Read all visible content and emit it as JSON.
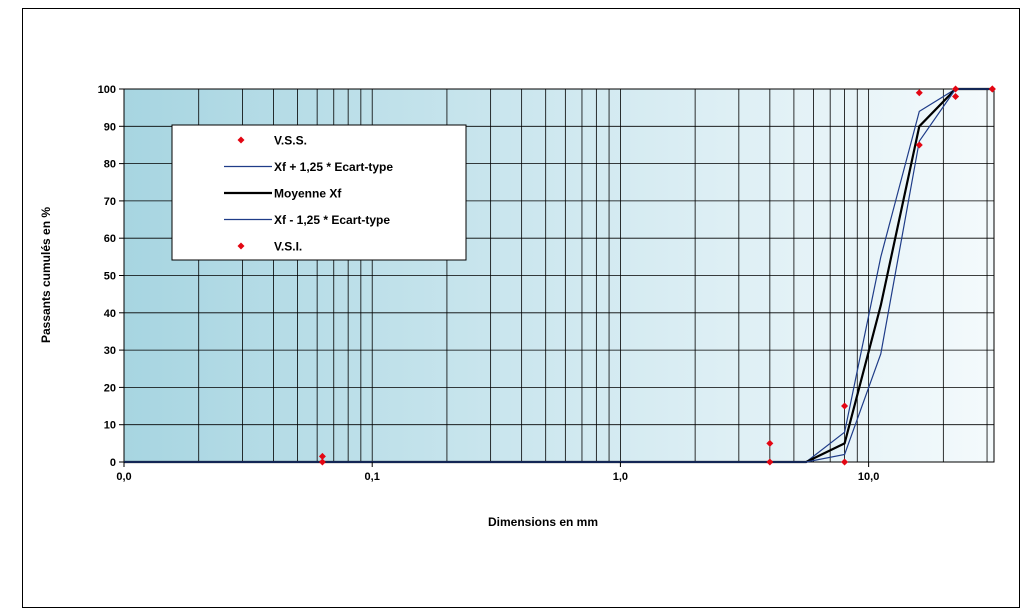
{
  "chart_data": {
    "type": "line",
    "x_scale": "log",
    "xlim": [
      0.01,
      32
    ],
    "ylim": [
      0,
      100
    ],
    "xlabel": "Dimensions en mm",
    "ylabel": "Passants cumulés en %",
    "x_tick_labels": [
      "0,0",
      "0,1",
      "1,0",
      "10,0"
    ],
    "x_tick_values": [
      0.01,
      0.1,
      1,
      10
    ],
    "y_tick_labels": [
      "0",
      "10",
      "20",
      "30",
      "40",
      "50",
      "60",
      "70",
      "80",
      "90",
      "100"
    ],
    "y_tick_values": [
      0,
      10,
      20,
      30,
      40,
      50,
      60,
      70,
      80,
      90,
      100
    ],
    "vertical_grid_x": [
      0.02,
      0.03,
      0.04,
      0.05,
      0.06,
      0.07,
      0.08,
      0.09,
      0.1,
      0.2,
      0.3,
      0.4,
      0.5,
      0.6,
      0.7,
      0.8,
      0.9,
      1,
      2,
      3,
      4,
      5,
      6,
      7,
      8,
      9,
      10,
      20,
      30
    ],
    "horizontal_grid": true,
    "legend_position": "upper-left",
    "series": [
      {
        "name": "V.S.S.",
        "kind": "points",
        "color": "#e30613",
        "points": [
          [
            0.063,
            1.5
          ],
          [
            4,
            5
          ],
          [
            8,
            15
          ],
          [
            16,
            99
          ],
          [
            22.4,
            100
          ],
          [
            31.5,
            100
          ]
        ]
      },
      {
        "name": "Xf + 1,25 * Ecart-type",
        "kind": "line",
        "color": "#1f3c88",
        "points": [
          [
            0.01,
            0
          ],
          [
            5.6,
            0
          ],
          [
            8,
            8
          ],
          [
            11.2,
            55
          ],
          [
            16,
            94
          ],
          [
            22.4,
            100
          ],
          [
            31.5,
            100
          ]
        ]
      },
      {
        "name": "Moyenne Xf",
        "kind": "line",
        "color": "#000000",
        "points": [
          [
            0.01,
            0
          ],
          [
            5.6,
            0
          ],
          [
            8,
            5
          ],
          [
            11.2,
            42
          ],
          [
            16,
            90
          ],
          [
            22.4,
            100
          ],
          [
            31.5,
            100
          ]
        ]
      },
      {
        "name": "Xf - 1,25 * Ecart-type",
        "kind": "line",
        "color": "#1f3c88",
        "points": [
          [
            0.01,
            0
          ],
          [
            5.6,
            0
          ],
          [
            8,
            2
          ],
          [
            11.2,
            29
          ],
          [
            16,
            86
          ],
          [
            22.4,
            100
          ],
          [
            31.5,
            100
          ]
        ]
      },
      {
        "name": "V.S.I.",
        "kind": "points",
        "color": "#e30613",
        "points": [
          [
            0.063,
            0
          ],
          [
            4,
            0
          ],
          [
            8,
            0
          ],
          [
            16,
            85
          ],
          [
            22.4,
            98
          ],
          [
            31.5,
            100
          ]
        ]
      }
    ]
  }
}
